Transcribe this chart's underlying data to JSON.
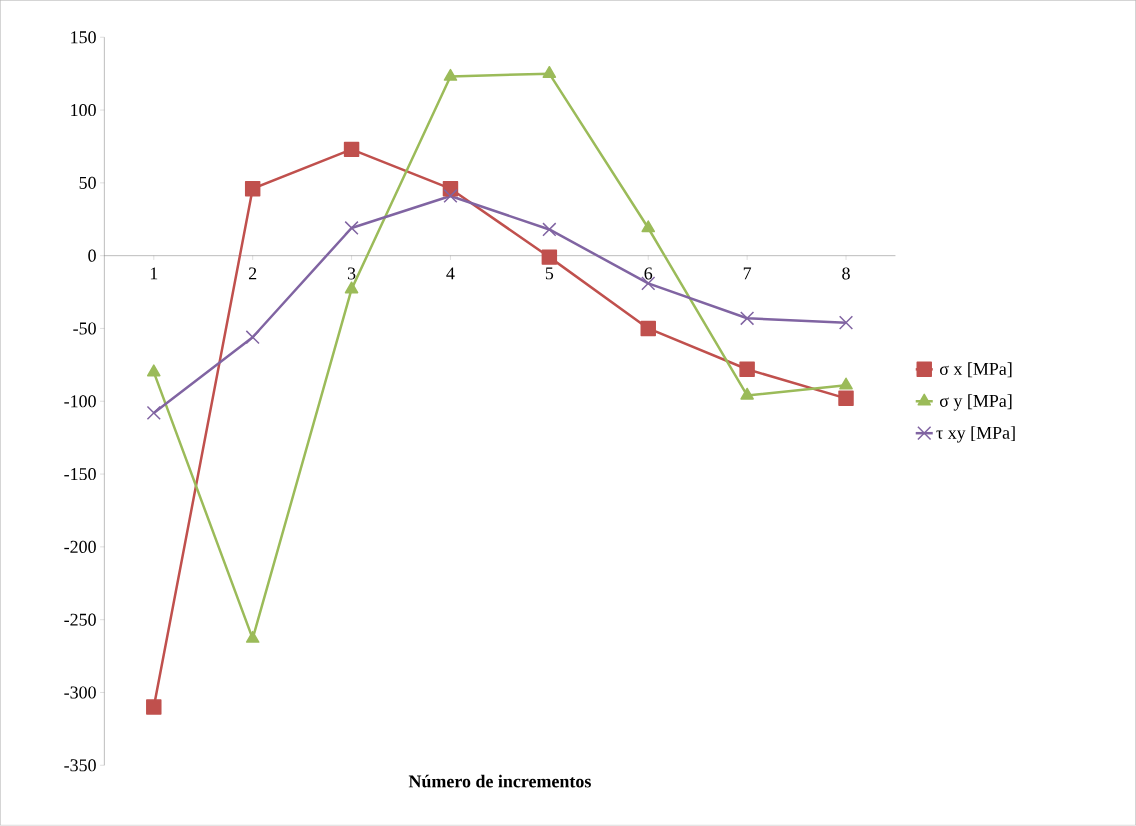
{
  "chart_data": {
    "type": "line",
    "xlabel": "Número de incrementos",
    "categories": [
      "1",
      "2",
      "3",
      "4",
      "5",
      "6",
      "7",
      "8"
    ],
    "series": [
      {
        "name": "σ x [MPa]",
        "color": "#c0504d",
        "marker": "square",
        "values": [
          -310,
          46,
          73,
          46,
          -1,
          -50,
          -78,
          -98
        ]
      },
      {
        "name": "σ y [MPa]",
        "color": "#9bbb59",
        "marker": "triangle",
        "values": [
          -80,
          -263,
          -23,
          123,
          125,
          19,
          -96,
          -89
        ]
      },
      {
        "name": "τ xy [MPa]",
        "color": "#8064a2",
        "marker": "cross",
        "values": [
          -108,
          -56,
          19,
          41,
          18,
          -19,
          -43,
          -46
        ]
      }
    ],
    "ylim": [
      -350,
      150
    ],
    "yticks": [
      -350,
      -300,
      -250,
      -200,
      -150,
      -100,
      -50,
      0,
      50,
      100,
      150
    ],
    "grid": false,
    "legend": "right"
  }
}
